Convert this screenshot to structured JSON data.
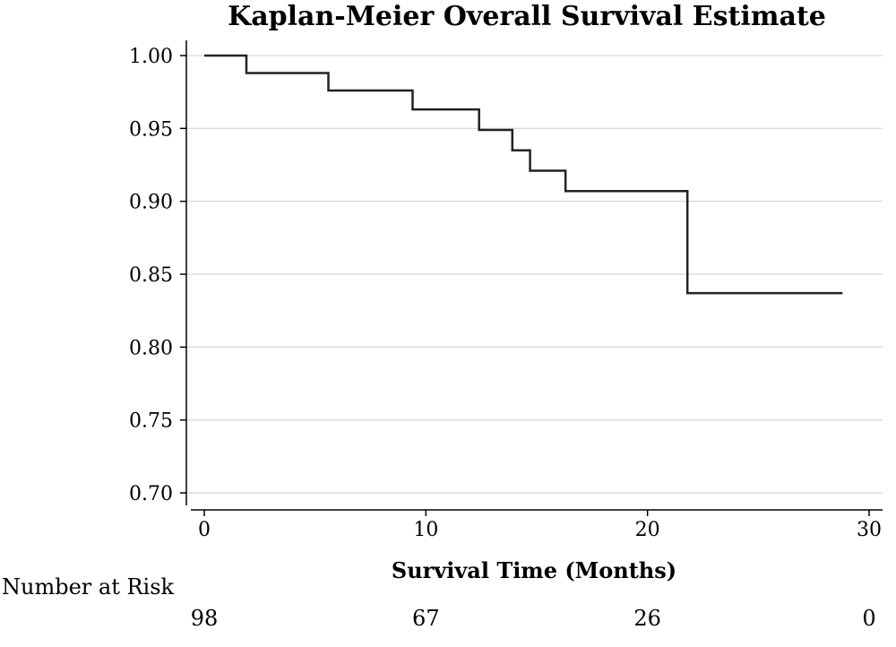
{
  "chart_data": {
    "type": "line",
    "title": "Kaplan-Meier Overall Survival Estimate",
    "xlabel": "Survival Time (Months)",
    "ylabel": "",
    "xlim": [
      0,
      30
    ],
    "ylim": [
      0.7,
      1.0
    ],
    "x_ticks": [
      "0",
      "10",
      "20",
      "30"
    ],
    "y_ticks": [
      "1.00",
      "0.95",
      "0.90",
      "0.85",
      "0.80",
      "0.75",
      "0.70"
    ],
    "grid": true,
    "step": true,
    "series": [
      {
        "x": [
          0,
          1.9,
          5.6,
          9.4,
          12.4,
          13.9,
          14.7,
          16.3,
          21.8,
          28.8
        ],
        "y": [
          1.0,
          0.988,
          0.976,
          0.963,
          0.949,
          0.935,
          0.921,
          0.907,
          0.837,
          0.837
        ]
      }
    ],
    "risk_table": {
      "label": "Number at Risk",
      "times": [
        0,
        10,
        20,
        30
      ],
      "counts": [
        "98",
        "67",
        "26",
        "0"
      ]
    }
  }
}
